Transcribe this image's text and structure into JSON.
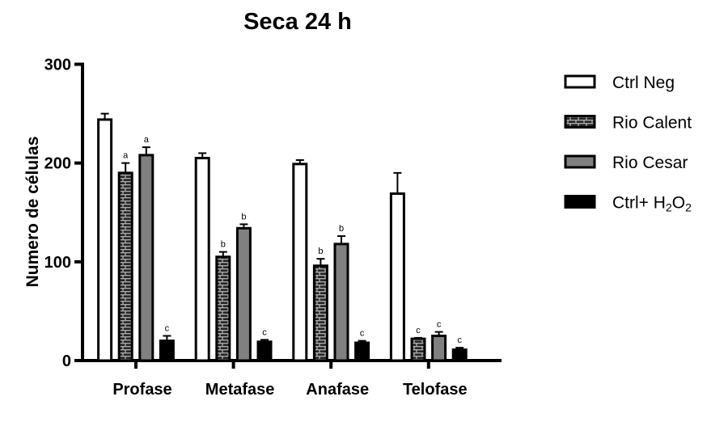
{
  "chart_data": {
    "type": "bar",
    "title": "Seca 24 h",
    "xlabel": "",
    "ylabel": "Numero de células",
    "ylim": [
      0,
      300
    ],
    "yticks": [
      0,
      100,
      200,
      300
    ],
    "grid": false,
    "legend_position": "right",
    "categories": [
      "Profase",
      "Metafase",
      "Anafase",
      "Telofase"
    ],
    "series": [
      {
        "name": "Ctrl Neg",
        "color": "#ffffff",
        "pattern": "none",
        "values": [
          244,
          205,
          199,
          169
        ],
        "error": [
          6,
          5,
          4,
          21
        ],
        "labels": [
          "",
          "",
          "",
          ""
        ]
      },
      {
        "name": "Rio Calent",
        "color": "#262626",
        "pattern": "brick",
        "values": [
          190,
          105,
          96,
          22
        ],
        "error": [
          10,
          5,
          7,
          1
        ],
        "labels": [
          "a",
          "b",
          "b",
          "c"
        ]
      },
      {
        "name": "Rio Cesar",
        "color": "#808080",
        "pattern": "none",
        "values": [
          208,
          134,
          118,
          25
        ],
        "error": [
          8,
          4,
          8,
          4
        ],
        "labels": [
          "a",
          "b",
          "b",
          "c"
        ]
      },
      {
        "name": "Ctrl+ H2O2",
        "color": "#000000",
        "pattern": "none",
        "values": [
          20,
          19,
          18,
          11
        ],
        "error": [
          5,
          2,
          2,
          2
        ],
        "labels": [
          "c",
          "c",
          "c",
          "c"
        ]
      }
    ]
  }
}
